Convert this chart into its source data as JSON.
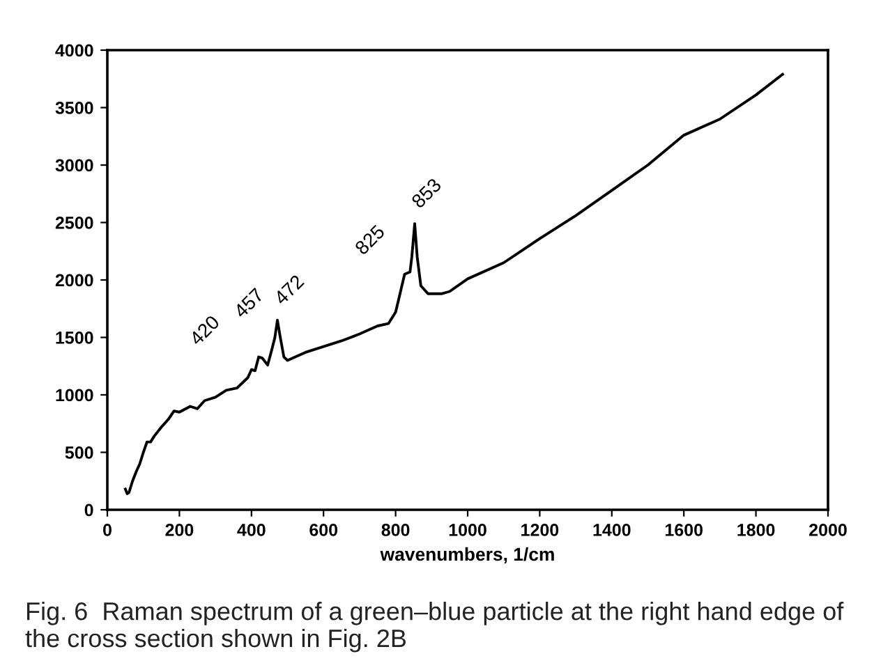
{
  "chart_data": {
    "type": "line",
    "xlabel": "wavenumbers, 1/cm",
    "x": [
      50,
      55,
      60,
      70,
      80,
      90,
      100,
      110,
      120,
      130,
      150,
      170,
      185,
      200,
      230,
      250,
      270,
      300,
      330,
      360,
      390,
      400,
      410,
      420,
      430,
      445,
      457,
      465,
      472,
      480,
      490,
      500,
      550,
      600,
      650,
      700,
      750,
      780,
      800,
      810,
      825,
      840,
      845,
      853,
      860,
      870,
      890,
      927,
      950,
      1000,
      1100,
      1200,
      1300,
      1400,
      1500,
      1600,
      1700,
      1800,
      1874
    ],
    "series": [
      {
        "color": "#000000",
        "values": [
          180,
          140,
          150,
          250,
          330,
          400,
          500,
          590,
          590,
          640,
          720,
          790,
          860,
          850,
          900,
          880,
          950,
          980,
          1040,
          1060,
          1150,
          1220,
          1210,
          1330,
          1320,
          1260,
          1400,
          1500,
          1650,
          1500,
          1330,
          1300,
          1370,
          1420,
          1470,
          1530,
          1600,
          1620,
          1720,
          1850,
          2050,
          2070,
          2200,
          2490,
          2200,
          1950,
          1880,
          1880,
          1900,
          2010,
          2150,
          2360,
          2560,
          2780,
          3000,
          3260,
          3400,
          3610,
          3790
        ]
      }
    ],
    "xlim": [
      0,
      2000
    ],
    "xticks": [
      0,
      200,
      400,
      600,
      800,
      1000,
      1200,
      1400,
      1600,
      1800,
      2000
    ],
    "ylim": [
      0,
      4000
    ],
    "yticks": [
      0,
      500,
      1000,
      1500,
      2000,
      2500,
      3000,
      3500,
      4000
    ],
    "grid": false,
    "marker": "none",
    "line_style": "solid",
    "annotations": [
      {
        "text": "420",
        "x": 420,
        "y": 1330
      },
      {
        "text": "457",
        "x": 457,
        "y": 1400
      },
      {
        "text": "472",
        "x": 472,
        "y": 1650
      },
      {
        "text": "825",
        "x": 825,
        "y": 2050
      },
      {
        "text": "853",
        "x": 853,
        "y": 2490
      },
      "Fig. 6  Raman spectrum of a green–blue particle at the right hand edge of the cross section shown in Fig. 2B"
    ]
  }
}
